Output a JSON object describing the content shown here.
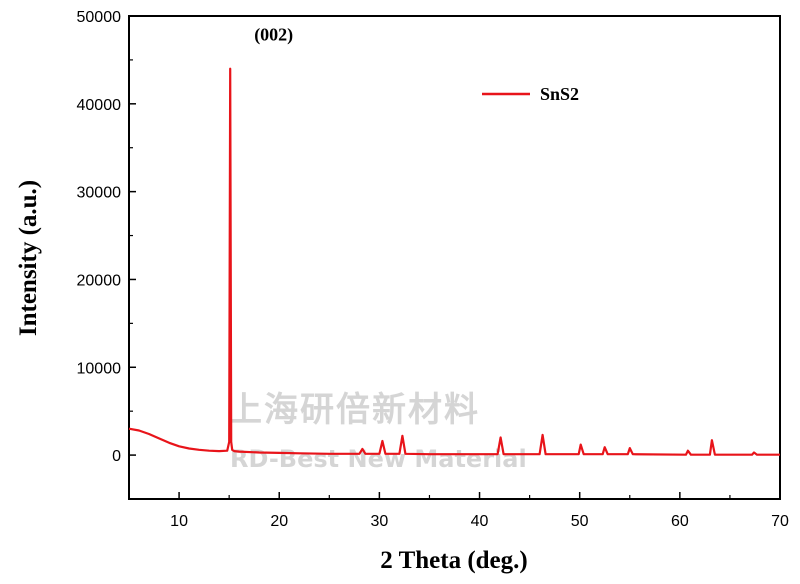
{
  "chart_data": {
    "type": "line",
    "xlabel": "2 Theta (deg.)",
    "ylabel": "Intensity (a.u.)",
    "xlim": [
      5,
      70
    ],
    "ylim": [
      -5000,
      50000
    ],
    "x_ticks": [
      10,
      20,
      30,
      40,
      50,
      60,
      70
    ],
    "y_ticks": [
      0,
      10000,
      20000,
      30000,
      40000,
      50000
    ],
    "grid": false,
    "legend_position": "top-right",
    "series": [
      {
        "name": "SnS2",
        "color": "#e8141a",
        "x": [
          5.0,
          6.0,
          7.0,
          8.0,
          9.0,
          10.0,
          11.0,
          12.0,
          13.0,
          14.0,
          14.8,
          15.0,
          15.1,
          15.2,
          15.3,
          15.5,
          16.0,
          18.0,
          20.0,
          22.0,
          25.0,
          28.0,
          28.3,
          28.6,
          30.0,
          30.3,
          30.6,
          32.0,
          32.3,
          32.6,
          35.0,
          38.0,
          41.8,
          42.1,
          42.4,
          46.0,
          46.3,
          46.6,
          49.9,
          50.1,
          50.4,
          52.3,
          52.5,
          52.8,
          54.8,
          55.0,
          55.3,
          60.6,
          60.8,
          61.1,
          63.0,
          63.2,
          63.5,
          67.2,
          67.4,
          67.7,
          70.0
        ],
        "y": [
          3000,
          2800,
          2400,
          1900,
          1400,
          1000,
          750,
          600,
          500,
          450,
          500,
          1500,
          44000,
          1500,
          600,
          450,
          400,
          300,
          250,
          200,
          150,
          150,
          700,
          150,
          150,
          1600,
          150,
          150,
          2200,
          150,
          100,
          100,
          100,
          2000,
          100,
          100,
          2300,
          100,
          100,
          1200,
          100,
          100,
          900,
          100,
          100,
          800,
          100,
          50,
          500,
          50,
          50,
          1700,
          50,
          50,
          300,
          50,
          50
        ]
      }
    ],
    "annotations": [
      {
        "text": "(002)",
        "x": 17.5,
        "y": 44000
      }
    ]
  },
  "watermark": {
    "line1": "上海研倍新材料",
    "line2": "RD-Best New Material"
  }
}
